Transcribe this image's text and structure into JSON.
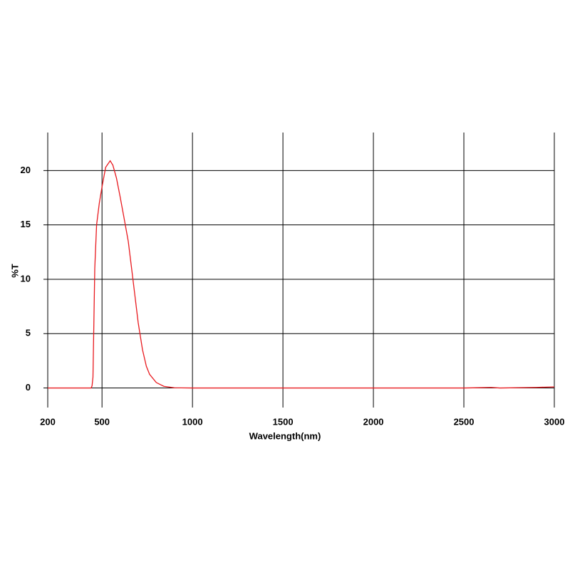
{
  "chart_data": {
    "type": "line",
    "x_label": "Wavelength(nm)",
    "y_label": "%T",
    "x": [
      200,
      300,
      400,
      440,
      445,
      450,
      455,
      460,
      470,
      485,
      500,
      520,
      545,
      560,
      580,
      600,
      620,
      645,
      665,
      684,
      700,
      724,
      745,
      763,
      800,
      842,
      900,
      1000,
      1500,
      2000,
      2500,
      2600,
      2650,
      2700,
      2900,
      3000
    ],
    "series": [
      {
        "color": "#e8191e",
        "values": [
          0,
          0,
          0,
          0,
          0.2,
          1,
          6,
          11,
          15,
          17,
          18.5,
          20.3,
          20.9,
          20.5,
          19.3,
          17.6,
          15.8,
          13.5,
          10.8,
          8.2,
          6,
          3.5,
          2.0,
          1.25,
          0.5,
          0.15,
          0.02,
          0,
          0,
          0,
          0,
          0.03,
          0.05,
          0,
          0.05,
          0.1
        ]
      }
    ],
    "xlim": [
      200,
      3000
    ],
    "ylim": [
      -1.8,
      23.5
    ],
    "xticks": [
      200,
      500,
      1000,
      1500,
      2000,
      2500,
      3000
    ],
    "yticks": [
      0,
      5,
      10,
      15,
      20
    ],
    "grid": true
  }
}
